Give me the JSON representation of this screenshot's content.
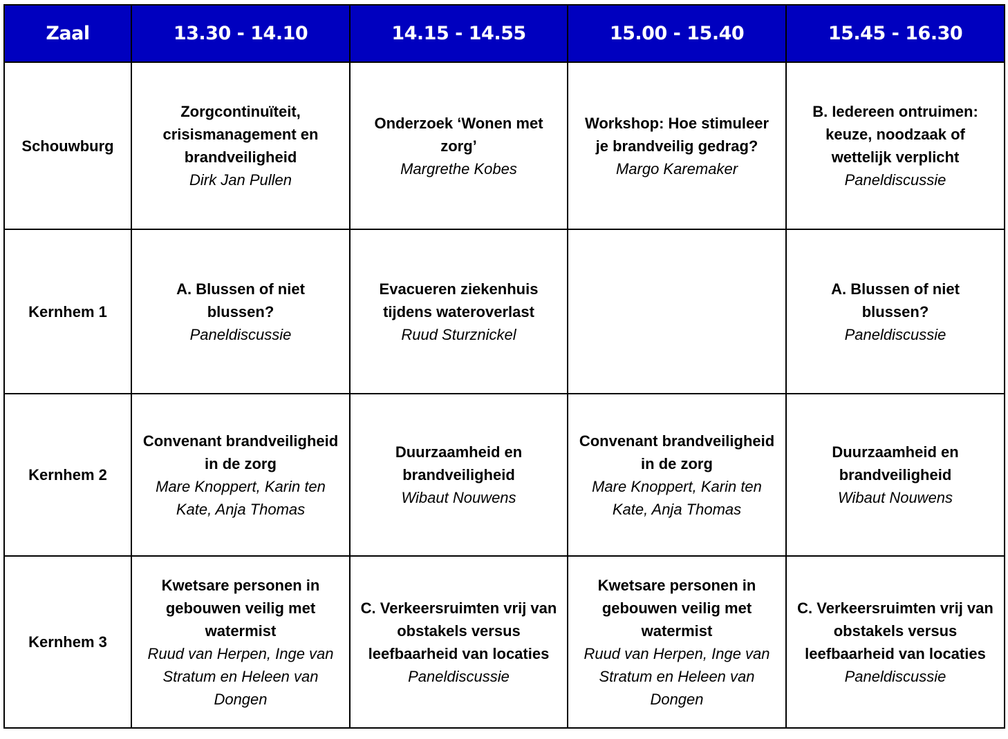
{
  "header": [
    "Zaal",
    "13.30 - 14.10",
    "14.15 - 14.55",
    "15.00 - 15.40",
    "15.45 - 16.30"
  ],
  "colors": {
    "header_bg": "#0000bf",
    "header_text": "#ffffff"
  },
  "rows": [
    {
      "room": "Schouwburg",
      "sessions": [
        {
          "title": "Zorgcontinuïteit, crisismanagement en brandveiligheid",
          "speaker": "Dirk Jan Pullen"
        },
        {
          "title": "Onderzoek ‘Wonen met zorg’",
          "speaker": "Margrethe Kobes"
        },
        {
          "title": "Workshop: Hoe stimuleer je brandveilig gedrag?",
          "speaker": "Margo Karemaker"
        },
        {
          "title": "B. Iedereen ontruimen: keuze, noodzaak of wettelijk verplicht",
          "speaker": "Paneldiscussie"
        }
      ]
    },
    {
      "room": "Kernhem 1",
      "sessions": [
        {
          "title": "A. Blussen of niet blussen?",
          "speaker": "Paneldiscussie"
        },
        {
          "title": "Evacueren ziekenhuis tijdens wateroverlast",
          "speaker": "Ruud Sturznickel"
        },
        {
          "title": "",
          "speaker": ""
        },
        {
          "title": "A. Blussen of niet blussen?",
          "speaker": "Paneldiscussie"
        }
      ]
    },
    {
      "room": "Kernhem 2",
      "sessions": [
        {
          "title": "Convenant brandveiligheid in de zorg",
          "speaker": "Mare Knoppert, Karin ten Kate, Anja Thomas"
        },
        {
          "title": "Duurzaamheid en brandveiligheid",
          "speaker": "Wibaut Nouwens"
        },
        {
          "title": "Convenant brandveiligheid in de zorg",
          "speaker": "Mare Knoppert, Karin ten Kate, Anja Thomas"
        },
        {
          "title": "Duurzaamheid en brandveiligheid",
          "speaker": "Wibaut Nouwens"
        }
      ]
    },
    {
      "room": "Kernhem 3",
      "sessions": [
        {
          "title": "Kwetsare personen in gebouwen veilig met watermist",
          "speaker": "Ruud van Herpen, Inge van Stratum en Heleen van Dongen"
        },
        {
          "title": "C. Verkeersruimten vrij van obstakels versus leefbaarheid van locaties",
          "speaker": "Paneldiscussie"
        },
        {
          "title": "Kwetsare personen in gebouwen veilig met watermist",
          "speaker": "Ruud van Herpen, Inge van Stratum en Heleen van Dongen"
        },
        {
          "title": "C. Verkeersruimten vrij van obstakels versus leefbaarheid van locaties",
          "speaker": "Paneldiscussie"
        }
      ]
    }
  ]
}
